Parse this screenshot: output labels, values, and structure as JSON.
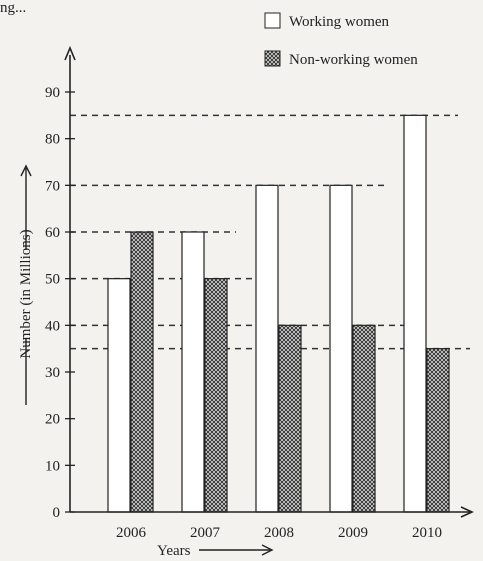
{
  "header_fragment": "ng...",
  "legend": [
    {
      "label": "Working women",
      "pattern": "plain"
    },
    {
      "label": "Non-working women",
      "pattern": "crosshatch"
    }
  ],
  "colors": {
    "background": "#f3f2ee",
    "ink": "#222222",
    "bar_fill": "#ffffff"
  },
  "chart_data": {
    "type": "bar",
    "categories": [
      "2006",
      "2007",
      "2008",
      "2009",
      "2010"
    ],
    "series": [
      {
        "name": "Working women",
        "values": [
          50,
          60,
          70,
          70,
          85
        ]
      },
      {
        "name": "Non-working women",
        "values": [
          60,
          50,
          40,
          40,
          35
        ]
      }
    ],
    "xlabel": "Years",
    "ylabel": "Number (in Millions)",
    "ylim": [
      0,
      90
    ],
    "yticks": [
      0,
      10,
      20,
      30,
      40,
      50,
      60,
      70,
      80,
      90
    ],
    "reference_lines": [
      85,
      70,
      60,
      50,
      40,
      35
    ],
    "grid": false,
    "legend_position": "top-right"
  }
}
